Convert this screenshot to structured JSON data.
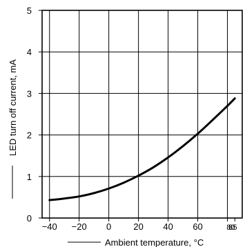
{
  "chart_data": {
    "type": "line",
    "xlabel": "Ambient temperature, °C",
    "ylabel": "LED turn off current, mA",
    "xlim": [
      -45,
      90
    ],
    "ylim": [
      0,
      5
    ],
    "x_ticks": [
      -40,
      -20,
      0,
      20,
      40,
      60,
      80,
      85
    ],
    "x_tick_labels": [
      "−40",
      "−20",
      "0",
      "20",
      "40",
      "60",
      "80",
      "85"
    ],
    "y_ticks": [
      0,
      1,
      2,
      3,
      4,
      5
    ],
    "y_tick_labels": [
      "0",
      "1",
      "2",
      "3",
      "4",
      "5"
    ],
    "grid": true,
    "series": [
      {
        "x": [
          -40,
          -30,
          -20,
          -10,
          0,
          10,
          20,
          30,
          40,
          50,
          60,
          70,
          80,
          85
        ],
        "y": [
          0.43,
          0.47,
          0.52,
          0.6,
          0.71,
          0.85,
          1.02,
          1.22,
          1.46,
          1.73,
          2.03,
          2.36,
          2.7,
          2.88
        ]
      }
    ],
    "colors": {
      "line": "#000000",
      "grid": "#000000"
    }
  }
}
